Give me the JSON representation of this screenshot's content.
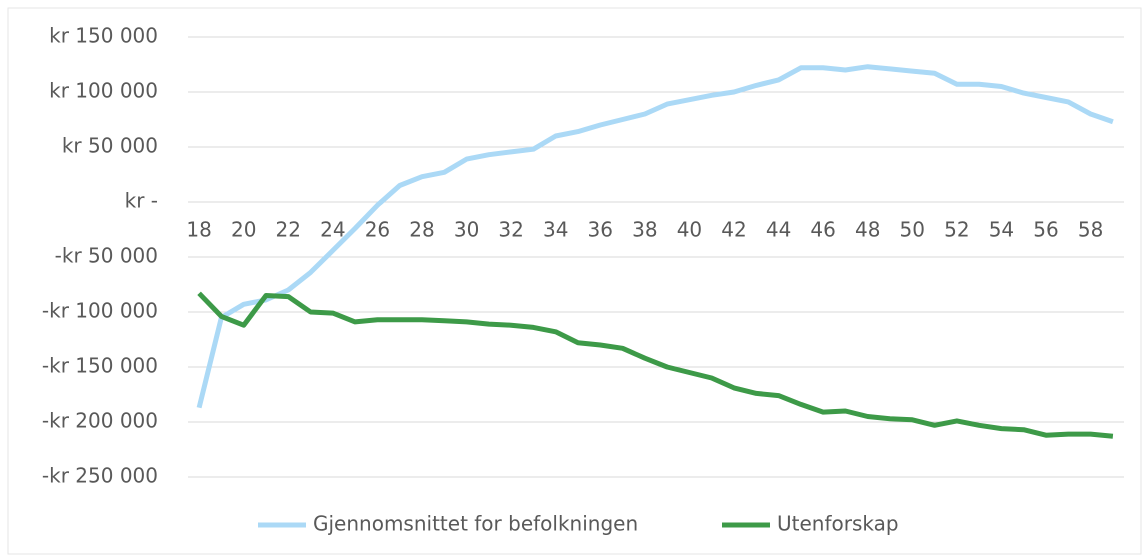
{
  "chart_data": {
    "type": "line",
    "x": [
      18,
      19,
      20,
      21,
      22,
      23,
      24,
      25,
      26,
      27,
      28,
      29,
      30,
      31,
      32,
      33,
      34,
      35,
      36,
      37,
      38,
      39,
      40,
      41,
      42,
      43,
      44,
      45,
      46,
      47,
      48,
      49,
      50,
      51,
      52,
      53,
      54,
      55,
      56,
      57,
      58,
      59
    ],
    "series": [
      {
        "name": "Gjennomsnittet for befolkningen",
        "color": "#abd9f6",
        "values": [
          -187000,
          -105000,
          -93000,
          -89000,
          -80000,
          -64000,
          -44000,
          -24000,
          -3000,
          15000,
          23000,
          27000,
          39000,
          43000,
          45500,
          48000,
          60000,
          64000,
          70000,
          75000,
          80000,
          89000,
          93000,
          97000,
          100000,
          106000,
          111000,
          122000,
          122000,
          120000,
          123000,
          121000,
          119000,
          117000,
          107000,
          107000,
          105000,
          99000,
          95000,
          91000,
          80000,
          73000
        ]
      },
      {
        "name": "Utenforskap",
        "color": "#3d9a48",
        "values": [
          -83000,
          -104000,
          -112000,
          -85000,
          -86000,
          -100000,
          -101000,
          -109000,
          -107000,
          -107000,
          -107000,
          -108000,
          -109000,
          -111000,
          -112000,
          -114000,
          -118000,
          -128000,
          -130000,
          -133000,
          -142000,
          -150000,
          -155000,
          -160000,
          -169000,
          -174000,
          -176000,
          -184000,
          -191000,
          -190000,
          -195000,
          -197000,
          -198000,
          -203000,
          -199000,
          -203000,
          -206000,
          -207000,
          -212000,
          -211000,
          -211000,
          -213000
        ]
      }
    ],
    "xlim": [
      17.5,
      59.5
    ],
    "xticks": [
      18,
      20,
      22,
      24,
      26,
      28,
      30,
      32,
      34,
      36,
      38,
      40,
      42,
      44,
      46,
      48,
      50,
      52,
      54,
      56,
      58
    ],
    "ylim": [
      -250000,
      150000
    ],
    "yticks": [
      {
        "value": 150000,
        "label": "kr 150 000"
      },
      {
        "value": 100000,
        "label": "kr 100 000"
      },
      {
        "value": 50000,
        "label": "kr 50 000"
      },
      {
        "value": 0,
        "label": "kr -"
      },
      {
        "value": -50000,
        "label": "-kr 50 000"
      },
      {
        "value": -100000,
        "label": "-kr 100 000"
      },
      {
        "value": -150000,
        "label": "-kr 150 000"
      },
      {
        "value": -200000,
        "label": "-kr 200 000"
      },
      {
        "value": -250000,
        "label": "-kr 250 000"
      }
    ],
    "grid": true,
    "legend": "bottom"
  }
}
